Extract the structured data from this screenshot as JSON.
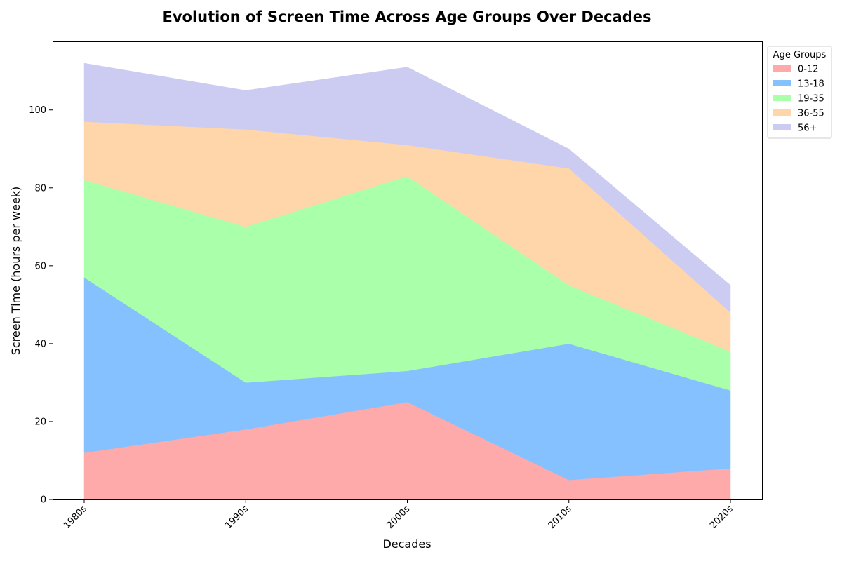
{
  "chart_data": {
    "type": "area",
    "stacked": true,
    "title": "Evolution of Screen Time Across Age Groups Over Decades",
    "xlabel": "Decades",
    "ylabel": "Screen Time (hours per week)",
    "categories": [
      "1980s",
      "1990s",
      "2000s",
      "2010s",
      "2020s"
    ],
    "series": [
      {
        "name": "0-12",
        "color": "#ffaaaa",
        "values": [
          12,
          18,
          25,
          5,
          8
        ]
      },
      {
        "name": "13-18",
        "color": "#85c1ff",
        "values": [
          45,
          12,
          8,
          35,
          20
        ]
      },
      {
        "name": "19-35",
        "color": "#aaffaa",
        "values": [
          25,
          40,
          50,
          15,
          10
        ]
      },
      {
        "name": "36-55",
        "color": "#ffd5aa",
        "values": [
          15,
          25,
          8,
          30,
          10
        ]
      },
      {
        "name": "56+",
        "color": "#ccccf2",
        "values": [
          15,
          10,
          20,
          5,
          7
        ]
      }
    ],
    "ylim": [
      0,
      117.6
    ],
    "yticks": [
      "0",
      "20",
      "40",
      "60",
      "80",
      "100"
    ],
    "grid": false,
    "legend": {
      "title": "Age Groups",
      "placement": "outside-top-right"
    }
  }
}
